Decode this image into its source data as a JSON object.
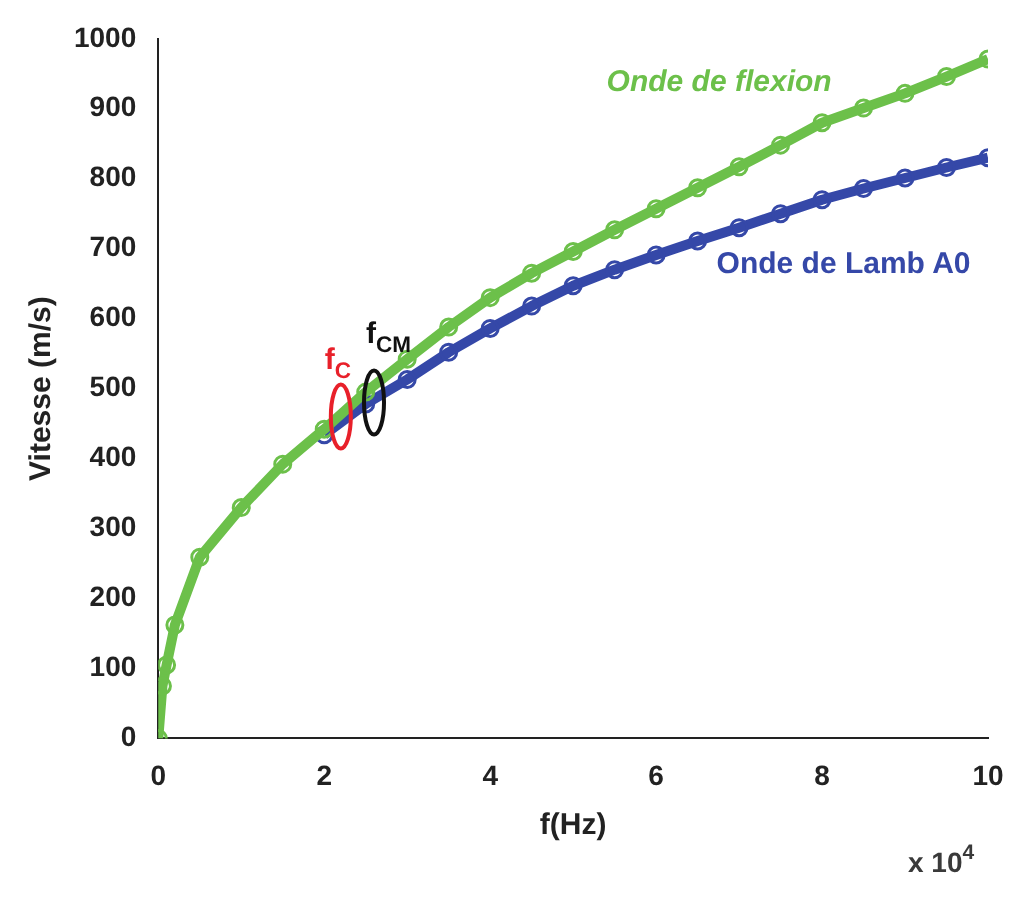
{
  "chart_data": {
    "type": "line",
    "xlabel": "f(Hz)",
    "ylabel": "Vitesse (m/s)",
    "xlim": [
      0,
      10
    ],
    "xticks": [
      0,
      2,
      4,
      6,
      8,
      10
    ],
    "ylim": [
      0,
      1000
    ],
    "yticks": [
      0,
      100,
      200,
      300,
      400,
      500,
      600,
      700,
      800,
      900,
      1000
    ],
    "grid": false,
    "legend": false,
    "marker": "circle",
    "line_style": "solid",
    "series": [
      {
        "name": "Onde de flexion",
        "color": "#6cc04a",
        "x": [
          0,
          0.05,
          0.1,
          0.2,
          0.5,
          1,
          1.5,
          2,
          2.5,
          3,
          3.5,
          4,
          4.5,
          5,
          5.5,
          6,
          6.5,
          7,
          7.5,
          8,
          8.5,
          9,
          9.5,
          10
        ],
        "values": [
          0,
          75,
          105,
          162,
          259,
          330,
          392,
          442,
          495,
          542,
          588,
          630,
          665,
          696,
          727,
          757,
          787,
          817,
          848,
          880,
          901,
          922,
          946,
          971
        ]
      },
      {
        "name": "Onde de Lamb A0",
        "color": "#3548a8",
        "x": [
          2,
          2.5,
          3,
          3.5,
          4,
          4.5,
          5,
          5.5,
          6,
          6.5,
          7,
          7.5,
          8,
          8.5,
          9,
          9.5,
          10
        ],
        "values": [
          434,
          478,
          513,
          552,
          586,
          618,
          647,
          670,
          691,
          711,
          730,
          750,
          770,
          786,
          801,
          816,
          830
        ]
      }
    ],
    "annotations": [
      {
        "text": "f$_{C}$",
        "x": 2.2,
        "y": 460
      },
      {
        "text": "f$_{CM}$",
        "x": 2.6,
        "y": 480
      },
      "x 10$^{4}$"
    ]
  }
}
